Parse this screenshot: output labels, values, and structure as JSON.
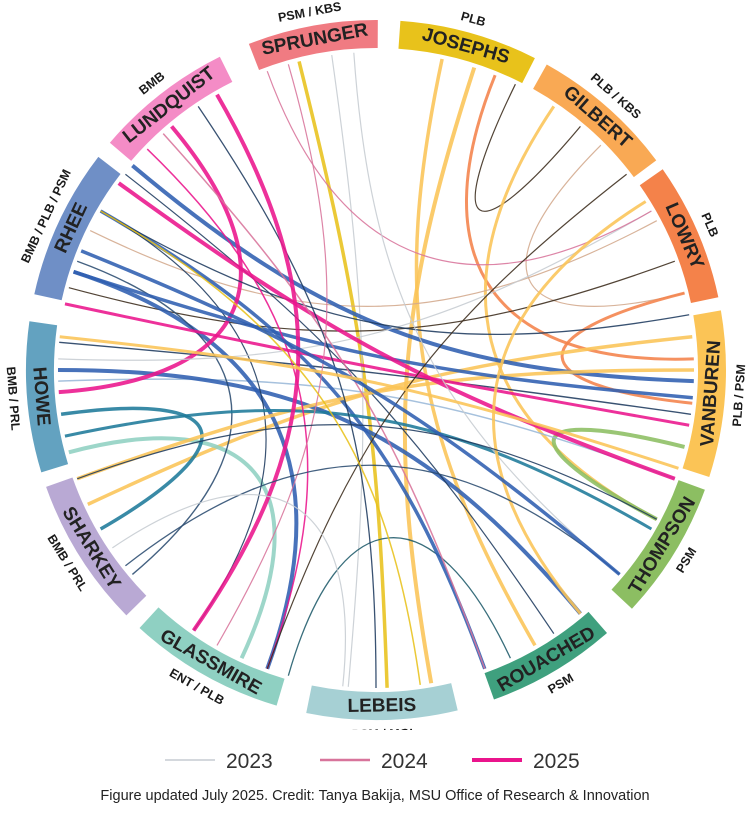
{
  "diagram": {
    "type": "chord",
    "nodes": [
      {
        "name": "SPRUNGER",
        "programs": "PSM / KBS",
        "color": "#f07b82"
      },
      {
        "name": "JOSEPHS",
        "programs": "PLB",
        "color": "#e8c21b"
      },
      {
        "name": "GILBERT",
        "programs": "PLB / KBS",
        "color": "#f9a954"
      },
      {
        "name": "LOWRY",
        "programs": "PLB",
        "color": "#f4824a"
      },
      {
        "name": "VANBUREN",
        "programs": "PLB / PSM",
        "color": "#fbc456"
      },
      {
        "name": "THOMPSON",
        "programs": "PSM",
        "color": "#8cbe62"
      },
      {
        "name": "ROUACHED",
        "programs": "PSM",
        "color": "#3fa07e"
      },
      {
        "name": "LEBEIS",
        "programs": "PSM / MGI",
        "color": "#a6d0d4"
      },
      {
        "name": "GLASSMIRE",
        "programs": "ENT / PLB",
        "color": "#8fd0c2"
      },
      {
        "name": "SHARKEY",
        "programs": "BMB / PRL",
        "color": "#b9a9d4"
      },
      {
        "name": "HOWE",
        "programs": "BMB / PRL",
        "color": "#63a2c0"
      },
      {
        "name": "RHEE",
        "programs": "BMB / PLB / PSM",
        "color": "#6f8fc6"
      },
      {
        "name": "LUNDQUIST",
        "programs": "BMB",
        "color": "#f48cc6"
      }
    ]
  },
  "legend": [
    {
      "label": "2023",
      "color": "#c6ccd2",
      "width": 1.5
    },
    {
      "label": "2024",
      "color": "#d8749b",
      "width": 2.5
    },
    {
      "label": "2025",
      "color": "#ea148c",
      "width": 4
    }
  ],
  "caption": "Figure updated July 2025. Credit: Tanya Bakija, MSU Office of Research & Innovation"
}
